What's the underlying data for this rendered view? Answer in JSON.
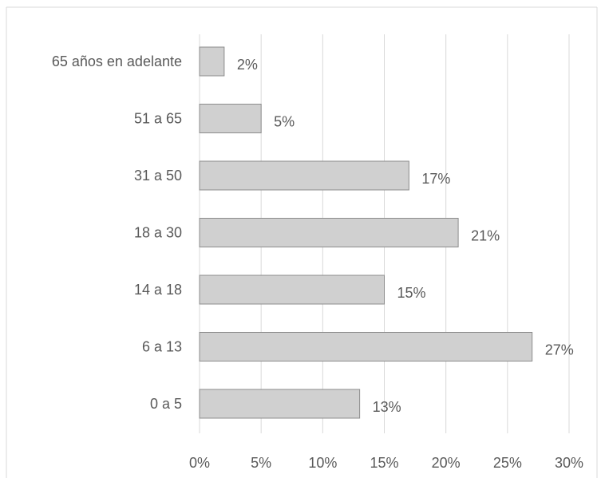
{
  "chart_data": {
    "type": "bar",
    "orientation": "horizontal",
    "categories": [
      "65 años en adelante",
      "51 a 65",
      "31 a 50",
      "18 a 30",
      "14 a 18",
      "6 a 13",
      "0 a 5"
    ],
    "values": [
      2,
      5,
      17,
      21,
      15,
      27,
      13
    ],
    "data_labels": [
      "2%",
      "5%",
      "17%",
      "21%",
      "15%",
      "27%",
      "13%"
    ],
    "x_ticks": [
      "0%",
      "5%",
      "10%",
      "15%",
      "20%",
      "25%",
      "30%"
    ],
    "xlim": [
      0,
      30
    ],
    "title": "",
    "xlabel": "",
    "ylabel": "",
    "grid": "vertical",
    "legend": "none",
    "colors": {
      "bar_fill": "#d0d0d0",
      "bar_stroke": "#8c8c8c",
      "grid": "#d9d9d9",
      "text": "#595959"
    }
  }
}
